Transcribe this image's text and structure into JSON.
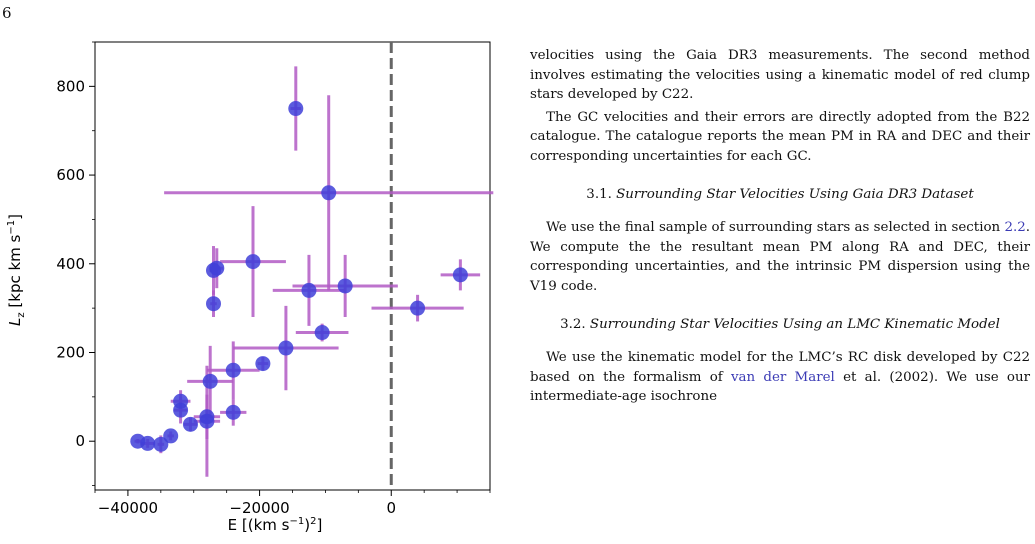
{
  "page": {
    "number": "6"
  },
  "chart_data": {
    "type": "scatter",
    "xlabel": "E [(km s⁻¹)²]",
    "ylabel": "L_z [kpc km s⁻¹]",
    "ylabel_main": "L",
    "ylabel_sub": "z",
    "ylabel_rest": " [kpc km s",
    "ylabel_sup": "−1",
    "ylabel_close": "]",
    "xlabel_main": "E [(km s",
    "xlabel_sup1": "−1",
    "xlabel_mid": ")",
    "xlabel_sup2": "2",
    "xlabel_close": "]",
    "xlim": [
      -45000,
      15000
    ],
    "ylim": [
      -110,
      900
    ],
    "xticks": [
      -40000,
      -20000,
      0
    ],
    "xtick_labels": [
      "−40000",
      "−20000",
      "0"
    ],
    "yticks": [
      0,
      200,
      400,
      600,
      800
    ],
    "ytick_labels": [
      "0",
      "200",
      "400",
      "600",
      "800"
    ],
    "vline_x": 0,
    "marker_color": "#3f3fd8",
    "errorbar_color": "#b15bc4",
    "vline_color": "#666666",
    "points": [
      {
        "x": -14500,
        "y": 750,
        "xerr": 800,
        "yerr": 95
      },
      {
        "x": -9500,
        "y": 560,
        "xerr": 25000,
        "yerr": 220
      },
      {
        "x": -26500,
        "y": 390,
        "xerr": 1000,
        "yerr": 45
      },
      {
        "x": -27000,
        "y": 385,
        "xerr": 600,
        "yerr": 55
      },
      {
        "x": -21000,
        "y": 405,
        "xerr": 5000,
        "yerr": 125
      },
      {
        "x": -27000,
        "y": 310,
        "xerr": 500,
        "yerr": 30
      },
      {
        "x": -12500,
        "y": 340,
        "xerr": 5500,
        "yerr": 80
      },
      {
        "x": -7000,
        "y": 350,
        "xerr": 8000,
        "yerr": 70
      },
      {
        "x": -10500,
        "y": 245,
        "xerr": 4000,
        "yerr": 20
      },
      {
        "x": -16000,
        "y": 210,
        "xerr": 8000,
        "yerr": 95
      },
      {
        "x": 4000,
        "y": 300,
        "xerr": 7000,
        "yerr": 30
      },
      {
        "x": 10500,
        "y": 375,
        "xerr": 3000,
        "yerr": 35
      },
      {
        "x": -19500,
        "y": 175,
        "xerr": 800,
        "yerr": 15
      },
      {
        "x": -24000,
        "y": 160,
        "xerr": 4000,
        "yerr": 65
      },
      {
        "x": -27500,
        "y": 135,
        "xerr": 3500,
        "yerr": 80
      },
      {
        "x": -32000,
        "y": 90,
        "xerr": 1500,
        "yerr": 25
      },
      {
        "x": -32000,
        "y": 70,
        "xerr": 1000,
        "yerr": 30
      },
      {
        "x": -24000,
        "y": 65,
        "xerr": 2000,
        "yerr": 30
      },
      {
        "x": -28000,
        "y": 55,
        "xerr": 2000,
        "yerr": 50
      },
      {
        "x": -28000,
        "y": 45,
        "xerr": 2000,
        "yerr": 125
      },
      {
        "x": -30500,
        "y": 38,
        "xerr": 1000,
        "yerr": 15
      },
      {
        "x": -33500,
        "y": 12,
        "xerr": 500,
        "yerr": 10
      },
      {
        "x": -35000,
        "y": -7,
        "xerr": 500,
        "yerr": 20
      },
      {
        "x": -37000,
        "y": -5,
        "xerr": 1000,
        "yerr": 10
      },
      {
        "x": -38500,
        "y": 0,
        "xerr": 500,
        "yerr": 5
      }
    ]
  },
  "body": {
    "p1": "velocities using the Gaia DR3 measurements. The second method involves estimating the velocities using a kinematic model of red clump stars developed by C22.",
    "p2": "The GC velocities and their errors are directly adopted from the B22 catalogue. The catalogue reports the mean PM in RA and DEC and their corresponding uncertainties for each GC.",
    "s31_num": "3.1.",
    "s31_title": "Surrounding Star Velocities Using Gaia DR3 Dataset",
    "p3_before": "We use the final sample of surrounding stars as selected in section ",
    "p3_ref": "2.2",
    "p3_after": ". We compute the the resultant mean PM along RA and DEC, their corresponding uncertainties, and the intrinsic PM dispersion using the V19 code.",
    "s32_num": "3.2.",
    "s32_title": "Surrounding Star Velocities Using an LMC Kinematic Model",
    "p4_before": "We use the kinematic model for the LMC’s RC disk developed by C22 based on the formalism of ",
    "p4_ref": "van der Marel",
    "p4_after": " et al. (2002). We use our intermediate-age isochrone"
  }
}
